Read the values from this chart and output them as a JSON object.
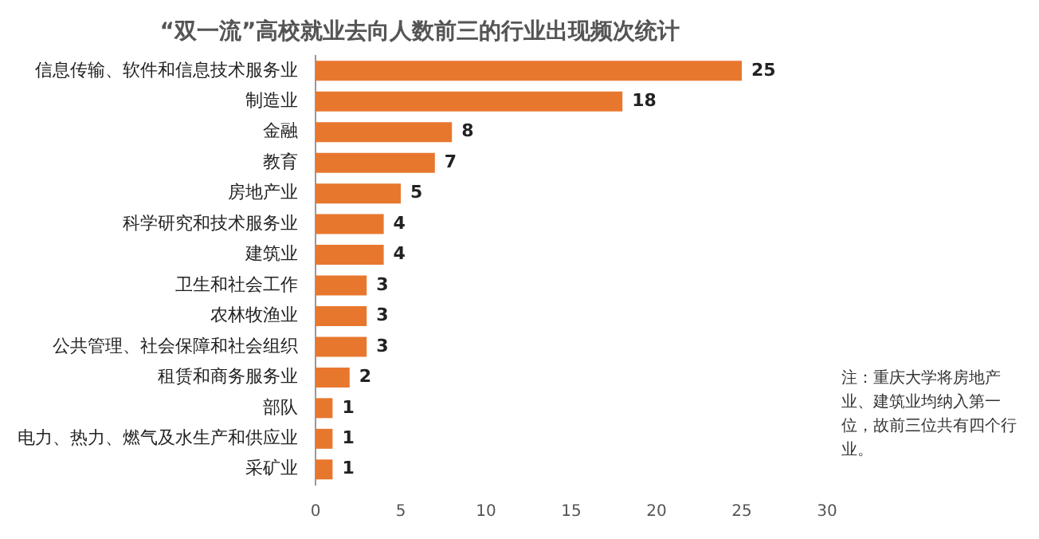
{
  "chart_data": {
    "type": "bar",
    "orientation": "horizontal",
    "title": "“双一流”高校就业去向人数前三的行业出现频次统计",
    "categories": [
      "信息传输、软件和信息技术服务业",
      "制造业",
      "金融",
      "教育",
      "房地产业",
      "科学研究和技术服务业",
      "建筑业",
      "卫生和社会工作",
      "农林牧渔业",
      "公共管理、社会保障和社会组织",
      "租赁和商务服务业",
      "部队",
      "电力、热力、燃气及水生产和供应业",
      "采矿业"
    ],
    "values": [
      25,
      18,
      8,
      7,
      5,
      4,
      4,
      3,
      3,
      3,
      2,
      1,
      1,
      1
    ],
    "color": "#e8772e",
    "xlim": [
      0,
      30
    ],
    "xticks": [
      0,
      5,
      10,
      15,
      20,
      25,
      30
    ],
    "data_labels": true,
    "annotations": [
      "注：重庆大学将房地产业、建筑业均纳入第一位，故前三位共有四个行业。"
    ]
  }
}
